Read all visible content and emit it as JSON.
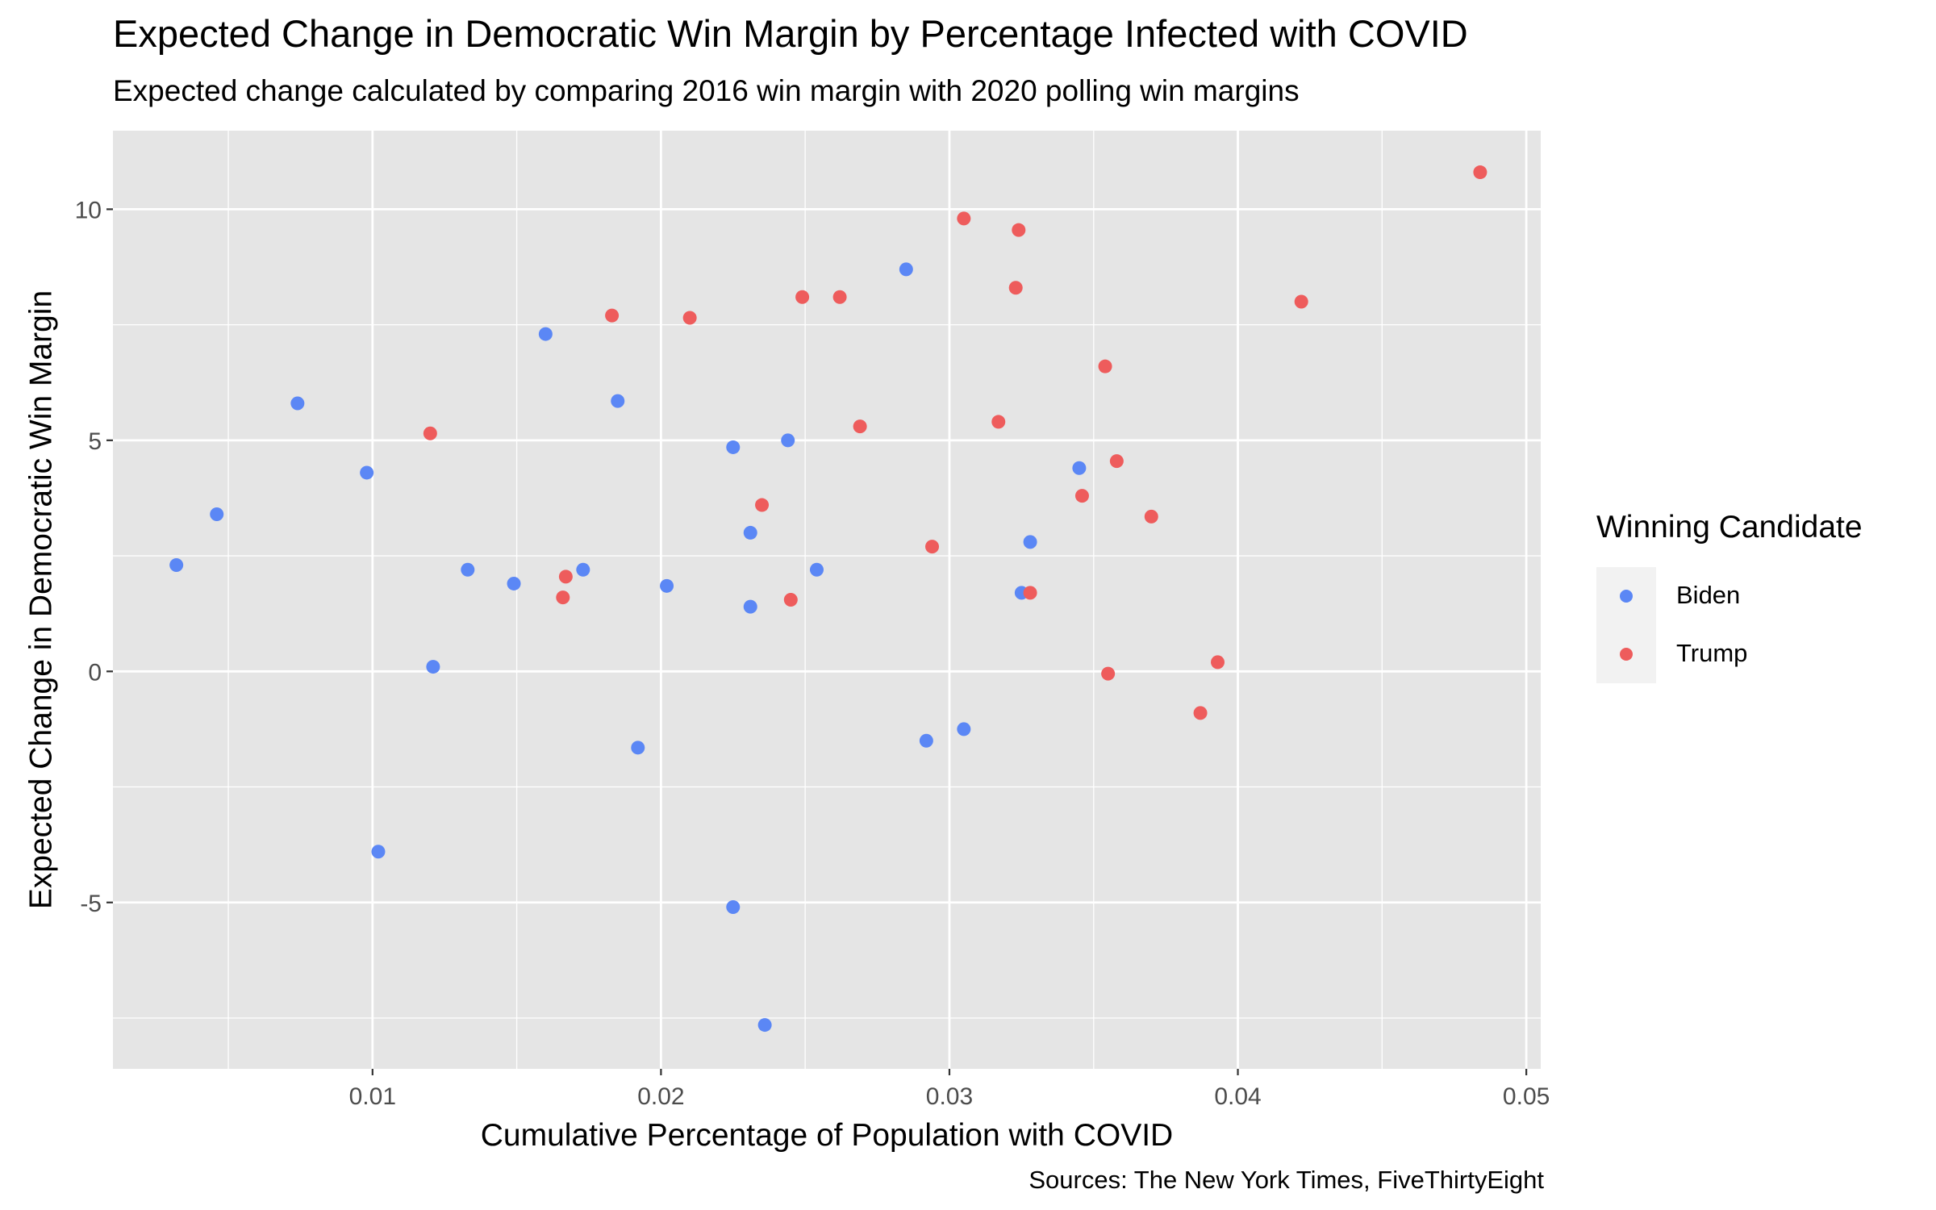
{
  "chart_data": {
    "type": "scatter",
    "title": "Expected Change in Democratic Win Margin by Percentage Infected with COVID",
    "subtitle": "Expected change calculated by comparing 2016 win margin with 2020 polling win margins",
    "caption": "Sources: The New York Times, FiveThirtyEight",
    "xlabel": "Cumulative Percentage of Population with COVID",
    "ylabel": "Expected Change in Democratic Win Margin",
    "xlim": [
      0.001,
      0.0505
    ],
    "ylim": [
      -8.6,
      11.7
    ],
    "x_ticks": [
      0.01,
      0.02,
      0.03,
      0.04,
      0.05
    ],
    "x_tick_labels": [
      "0.01",
      "0.02",
      "0.03",
      "0.04",
      "0.05"
    ],
    "y_ticks": [
      -5,
      0,
      5,
      10
    ],
    "y_tick_labels": [
      "-5",
      "0",
      "5",
      "10"
    ],
    "grid": true,
    "legend": {
      "title": "Winning Candidate",
      "position": "right"
    },
    "series": [
      {
        "name": "Biden",
        "color": "#5b87f5",
        "points": [
          [
            0.0032,
            2.3
          ],
          [
            0.0046,
            3.4
          ],
          [
            0.0074,
            5.8
          ],
          [
            0.0098,
            4.3
          ],
          [
            0.0102,
            -3.9
          ],
          [
            0.0121,
            0.1
          ],
          [
            0.0133,
            2.2
          ],
          [
            0.0149,
            1.9
          ],
          [
            0.016,
            7.3
          ],
          [
            0.0173,
            2.2
          ],
          [
            0.0185,
            5.85
          ],
          [
            0.0192,
            -1.65
          ],
          [
            0.0202,
            1.85
          ],
          [
            0.0225,
            4.85
          ],
          [
            0.0225,
            -5.1
          ],
          [
            0.0231,
            3.0
          ],
          [
            0.0231,
            1.4
          ],
          [
            0.0236,
            -7.65
          ],
          [
            0.0244,
            5.0
          ],
          [
            0.0254,
            2.2
          ],
          [
            0.0285,
            8.7
          ],
          [
            0.0292,
            -1.5
          ],
          [
            0.0305,
            -1.25
          ],
          [
            0.0325,
            1.7
          ],
          [
            0.0328,
            2.8
          ],
          [
            0.0345,
            4.4
          ]
        ]
      },
      {
        "name": "Trump",
        "color": "#ee5c5c",
        "points": [
          [
            0.012,
            5.15
          ],
          [
            0.0166,
            1.6
          ],
          [
            0.0167,
            2.05
          ],
          [
            0.0183,
            7.7
          ],
          [
            0.021,
            7.65
          ],
          [
            0.0235,
            3.6
          ],
          [
            0.0245,
            1.55
          ],
          [
            0.0249,
            8.1
          ],
          [
            0.0262,
            8.1
          ],
          [
            0.0269,
            5.3
          ],
          [
            0.0294,
            2.7
          ],
          [
            0.0305,
            9.8
          ],
          [
            0.0317,
            5.4
          ],
          [
            0.0323,
            8.3
          ],
          [
            0.0324,
            9.55
          ],
          [
            0.0328,
            1.7
          ],
          [
            0.0346,
            3.8
          ],
          [
            0.0354,
            6.6
          ],
          [
            0.0355,
            -0.05
          ],
          [
            0.0358,
            4.55
          ],
          [
            0.037,
            3.35
          ],
          [
            0.0387,
            -0.9
          ],
          [
            0.0393,
            0.2
          ],
          [
            0.0422,
            8.0
          ],
          [
            0.0484,
            10.8
          ]
        ]
      }
    ]
  }
}
